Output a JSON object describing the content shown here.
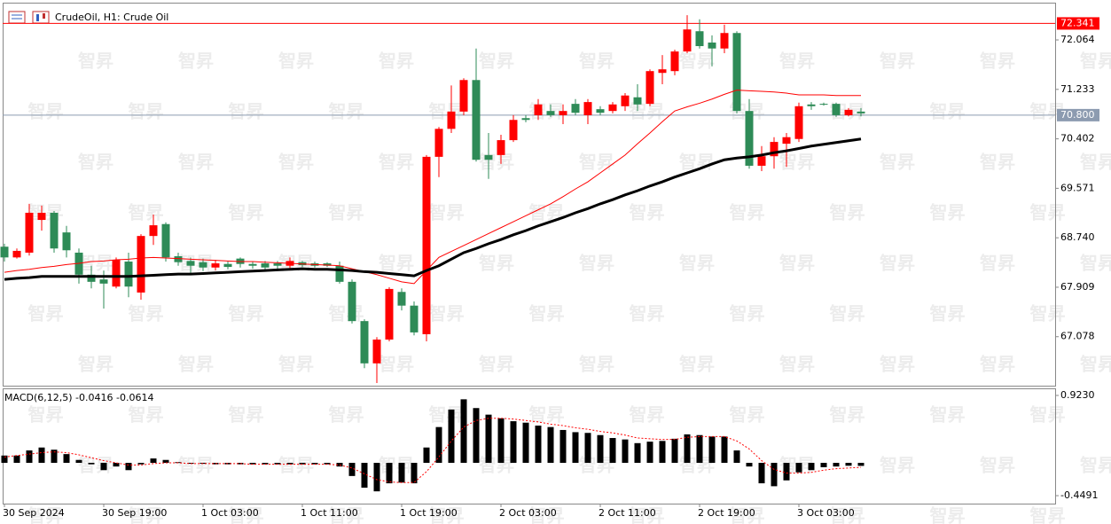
{
  "chart_data": {
    "type": "candlestick",
    "title": "CrudeOil, H1:  Crude Oil",
    "watermark": "智昇",
    "up_color": "#ff0000",
    "down_color": "#2e8b57",
    "categories": [
      "30 Sep 2024",
      null,
      null,
      null,
      null,
      null,
      null,
      null,
      "30 Sep 19:00",
      null,
      null,
      null,
      null,
      null,
      null,
      null,
      "1 Oct 03:00",
      null,
      null,
      null,
      null,
      null,
      null,
      null,
      "1 Oct 11:00",
      null,
      null,
      null,
      null,
      null,
      null,
      null,
      "1 Oct 19:00",
      null,
      null,
      null,
      null,
      null,
      null,
      null,
      "2 Oct 03:00",
      null,
      null,
      null,
      null,
      null,
      null,
      null,
      "2 Oct 11:00",
      null,
      null,
      null,
      null,
      null,
      null,
      null,
      "2 Oct 19:00",
      null,
      null,
      null,
      null,
      null,
      null,
      null,
      "3 Oct 03:00",
      null,
      null,
      null,
      null,
      null
    ],
    "open": [
      68.59,
      68.41,
      68.49,
      69.04,
      69.16,
      68.83,
      68.49,
      68.12,
      68.04,
      67.92,
      68.34,
      67.82,
      68.77,
      68.97,
      68.43,
      68.35,
      68.33,
      68.24,
      68.3,
      68.39,
      68.3,
      68.31,
      68.31,
      68.27,
      68.33,
      68.31,
      68.31,
      68.27,
      68.0,
      67.34,
      66.63,
      67.03,
      67.83,
      67.6,
      67.12,
      70.1,
      70.57,
      70.86,
      71.39,
      70.13,
      70.13,
      70.38,
      70.75,
      70.8,
      70.87,
      70.8,
      70.99,
      70.8,
      70.9,
      70.87,
      70.95,
      71.1,
      70.99,
      71.51,
      71.54,
      71.87,
      72.21,
      72.02,
      71.92,
      72.18,
      70.87,
      69.95,
      70.11,
      70.32,
      70.4,
      70.98,
      70.99,
      70.99,
      70.8,
      70.86
    ],
    "high": [
      68.64,
      68.56,
      69.31,
      69.28,
      69.19,
      68.94,
      68.56,
      68.27,
      68.19,
      68.41,
      68.49,
      68.8,
      69.13,
      69.0,
      68.49,
      68.41,
      68.39,
      68.37,
      68.34,
      68.41,
      68.34,
      68.35,
      68.35,
      68.41,
      68.35,
      68.34,
      68.33,
      68.34,
      68.04,
      67.37,
      67.07,
      67.91,
      67.89,
      67.67,
      70.13,
      70.6,
      71.3,
      71.42,
      71.92,
      70.5,
      70.47,
      70.8,
      70.8,
      71.07,
      70.98,
      70.98,
      71.07,
      71.07,
      70.95,
      71.02,
      71.17,
      71.32,
      71.57,
      71.81,
      71.9,
      72.48,
      72.41,
      72.14,
      72.32,
      72.21,
      71.07,
      70.28,
      70.43,
      70.5,
      71.01,
      71.02,
      71.01,
      71.01,
      70.92,
      70.92
    ],
    "low": [
      68.34,
      68.39,
      68.44,
      68.86,
      68.49,
      68.41,
      67.97,
      67.89,
      67.55,
      67.89,
      67.74,
      67.7,
      68.62,
      68.34,
      68.27,
      68.12,
      68.18,
      68.19,
      68.21,
      68.24,
      68.22,
      68.19,
      68.22,
      68.19,
      68.25,
      68.24,
      68.25,
      67.97,
      67.3,
      66.55,
      66.3,
      67.0,
      67.52,
      67.1,
      67.0,
      69.76,
      70.5,
      70.8,
      70.02,
      69.73,
      69.98,
      70.35,
      70.68,
      70.72,
      70.77,
      70.65,
      70.8,
      70.65,
      70.8,
      70.83,
      70.87,
      70.87,
      70.95,
      71.32,
      71.47,
      71.84,
      71.92,
      71.62,
      71.84,
      70.83,
      69.9,
      69.86,
      69.9,
      69.93,
      70.35,
      70.89,
      70.96,
      70.77,
      70.78,
      70.78
    ],
    "close": [
      68.41,
      68.52,
      69.16,
      69.16,
      68.56,
      68.53,
      68.12,
      68.0,
      67.97,
      68.37,
      67.92,
      68.77,
      68.95,
      68.41,
      68.33,
      68.27,
      68.24,
      68.31,
      68.25,
      68.3,
      68.27,
      68.24,
      68.27,
      68.35,
      68.28,
      68.27,
      68.27,
      68.0,
      67.34,
      66.63,
      67.03,
      67.88,
      67.6,
      67.15,
      70.1,
      70.57,
      70.86,
      71.39,
      70.05,
      70.05,
      70.38,
      70.72,
      70.72,
      70.98,
      70.8,
      70.87,
      70.84,
      71.02,
      70.84,
      70.98,
      71.13,
      70.98,
      71.54,
      71.57,
      71.87,
      72.24,
      71.96,
      71.92,
      72.18,
      70.87,
      69.95,
      70.11,
      70.35,
      70.43,
      70.95,
      70.95,
      70.98,
      70.8,
      70.89,
      70.83
    ],
    "ma": [
      {
        "color": "#ff0000",
        "width": 1,
        "values": [
          68.16,
          68.19,
          68.21,
          68.24,
          68.26,
          68.29,
          68.31,
          68.34,
          68.35,
          68.37,
          68.38,
          68.4,
          68.41,
          68.4,
          68.39,
          68.38,
          68.37,
          68.36,
          68.35,
          68.34,
          68.34,
          68.33,
          68.32,
          68.31,
          68.3,
          68.29,
          68.28,
          68.27,
          68.22,
          68.17,
          68.12,
          68.06,
          68.0,
          67.97,
          68.19,
          68.41,
          68.51,
          68.61,
          68.71,
          68.81,
          68.91,
          69.01,
          69.11,
          69.21,
          69.31,
          69.43,
          69.56,
          69.68,
          69.83,
          69.98,
          70.13,
          70.32,
          70.5,
          70.69,
          70.87,
          70.94,
          71.0,
          71.07,
          71.15,
          71.22,
          71.21,
          71.2,
          71.19,
          71.17,
          71.14,
          71.14,
          71.14,
          71.13,
          71.13,
          71.13
        ]
      },
      {
        "color": "#000000",
        "width": 3,
        "values": [
          68.04,
          68.06,
          68.07,
          68.09,
          68.09,
          68.09,
          68.09,
          68.09,
          68.09,
          68.09,
          68.09,
          68.1,
          68.11,
          68.12,
          68.13,
          68.13,
          68.14,
          68.15,
          68.16,
          68.17,
          68.18,
          68.19,
          68.2,
          68.21,
          68.22,
          68.21,
          68.21,
          68.2,
          68.19,
          68.17,
          68.16,
          68.14,
          68.12,
          68.1,
          68.19,
          68.27,
          68.38,
          68.49,
          68.56,
          68.64,
          68.71,
          68.79,
          68.86,
          68.94,
          69.01,
          69.08,
          69.16,
          69.23,
          69.31,
          69.38,
          69.46,
          69.53,
          69.61,
          69.68,
          69.76,
          69.83,
          69.9,
          69.98,
          70.05,
          70.08,
          70.1,
          70.13,
          70.17,
          70.2,
          70.24,
          70.28,
          70.31,
          70.34,
          70.37,
          70.4
        ]
      }
    ],
    "ylim": [
      66.24,
      72.69
    ],
    "yticks": [
      72.064,
      71.233,
      70.402,
      69.571,
      {
        "value": 68.74,
        "label": "68.740"
      },
      67.909,
      67.078
    ],
    "hlines": [
      {
        "value": 72.341,
        "color": "#ff0000"
      },
      {
        "value": 70.8,
        "label": "70.800",
        "color": "#8c9bb0"
      }
    ],
    "macd": {
      "label": "MACD(6,12,5) -0.0416 -0.0614",
      "color": "#000000",
      "signal_color": "#ff0000",
      "histogram": [
        0.1,
        0.1,
        0.17,
        0.21,
        0.18,
        0.12,
        0.04,
        -0.02,
        -0.1,
        -0.05,
        -0.1,
        -0.02,
        0.06,
        0.04,
        0.01,
        -0.01,
        -0.01,
        -0.02,
        -0.02,
        -0.02,
        -0.02,
        -0.02,
        -0.02,
        -0.02,
        -0.02,
        -0.02,
        -0.02,
        -0.05,
        -0.18,
        -0.34,
        -0.39,
        -0.28,
        -0.27,
        -0.28,
        0.21,
        0.49,
        0.73,
        0.87,
        0.75,
        0.66,
        0.61,
        0.57,
        0.55,
        0.51,
        0.49,
        0.45,
        0.42,
        0.41,
        0.38,
        0.34,
        0.32,
        0.27,
        0.29,
        0.3,
        0.33,
        0.39,
        0.38,
        0.36,
        0.36,
        0.17,
        -0.05,
        -0.28,
        -0.32,
        -0.24,
        -0.13,
        -0.1,
        -0.06,
        -0.05,
        -0.04,
        -0.0416
      ],
      "signal": [
        0.08,
        0.1,
        0.12,
        0.14,
        0.15,
        0.14,
        0.11,
        0.07,
        0.03,
        0.0,
        -0.03,
        -0.03,
        -0.01,
        0.0,
        0.0,
        -0.01,
        -0.01,
        -0.01,
        -0.01,
        -0.01,
        -0.02,
        -0.02,
        -0.02,
        -0.02,
        -0.02,
        -0.02,
        -0.02,
        -0.03,
        -0.07,
        -0.15,
        -0.23,
        -0.26,
        -0.27,
        -0.27,
        -0.12,
        0.08,
        0.3,
        0.49,
        0.58,
        0.61,
        0.61,
        0.6,
        0.58,
        0.56,
        0.53,
        0.51,
        0.48,
        0.46,
        0.43,
        0.41,
        0.38,
        0.34,
        0.33,
        0.32,
        0.32,
        0.35,
        0.36,
        0.36,
        0.36,
        0.3,
        0.19,
        0.03,
        -0.09,
        -0.14,
        -0.14,
        -0.13,
        -0.1,
        -0.08,
        -0.07,
        -0.0614
      ],
      "ylim": [
        -0.558,
        1.02
      ],
      "yticks": [
        {
          "value": 0.923,
          "label": "0.9230"
        },
        -0.4491
      ]
    }
  }
}
